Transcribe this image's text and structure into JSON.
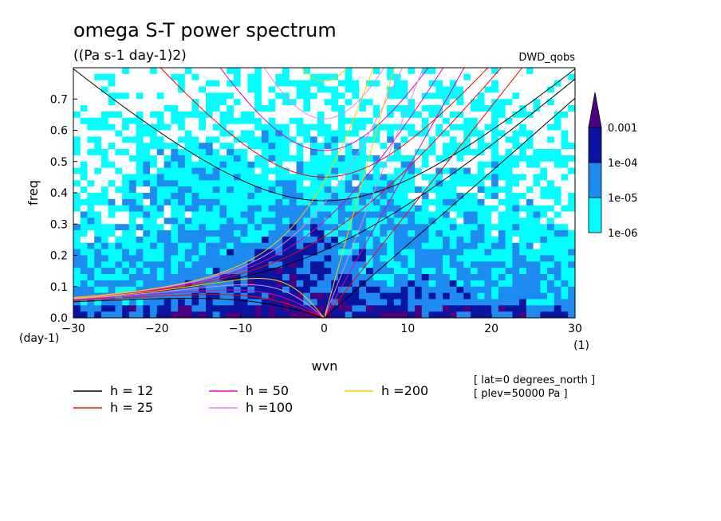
{
  "chart_data": {
    "type": "heatmap",
    "title": "omega S-T power spectrum",
    "units": "((Pa s-1 day-1)2)",
    "dataset": "DWD_qobs",
    "xlabel": "wvn",
    "xunits": "(1)",
    "ylabel": "freq",
    "yunits": "(day-1)",
    "xlim": [
      -30,
      30
    ],
    "ylim": [
      0,
      0.8
    ],
    "xticks": [
      "-30",
      "-20",
      "-10",
      "0",
      "10",
      "20",
      "30"
    ],
    "yticks": [
      "0.0",
      "0.1",
      "0.2",
      "0.3",
      "0.4",
      "0.5",
      "0.6",
      "0.7"
    ],
    "colorbar": {
      "levels": [
        "1e-06",
        "1e-05",
        "1e-04",
        "0.001"
      ],
      "colors": [
        "#ffffff",
        "#00ffff",
        "#1d8bf0",
        "#0a14a0",
        "#4b0082"
      ]
    },
    "dispersion_curves": [
      {
        "label": "h = 12",
        "h": 12,
        "color": "#000000"
      },
      {
        "label": "h = 25",
        "h": 25,
        "color": "#ff0000"
      },
      {
        "label": "h = 50",
        "h": 50,
        "color": "#e000c0"
      },
      {
        "label": "h =100",
        "h": 100,
        "color": "#ee82ee"
      },
      {
        "label": "h =200",
        "h": 200,
        "color": "#ffcc00"
      }
    ],
    "annotations": [
      "[ lat=0 degrees_north ]",
      "[ plev=50000 Pa ]"
    ]
  }
}
